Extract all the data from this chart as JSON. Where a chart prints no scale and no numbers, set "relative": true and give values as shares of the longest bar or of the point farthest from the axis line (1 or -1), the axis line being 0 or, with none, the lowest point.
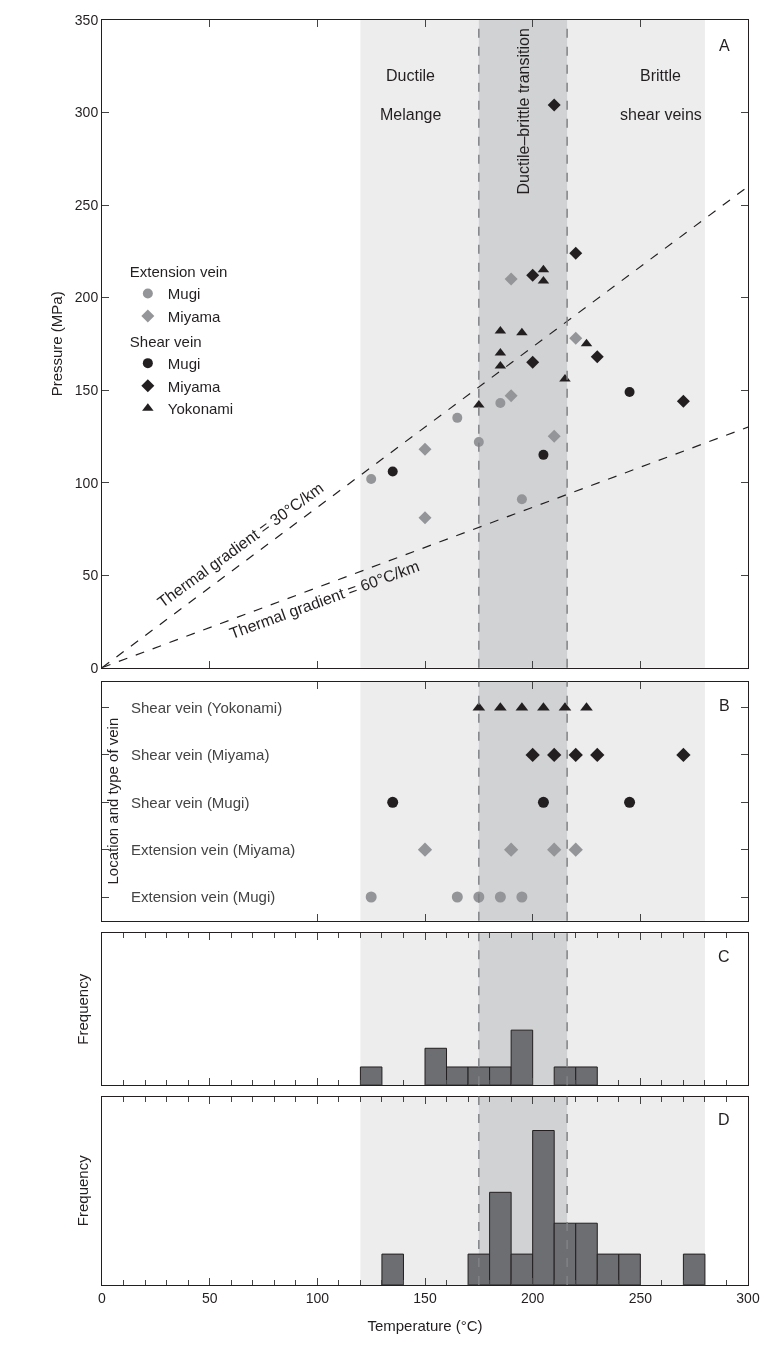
{
  "chart_data": [
    {
      "type": "scatter",
      "ylabel": "Pressure (MPa)",
      "xlim": [
        0,
        300
      ],
      "xticks": [
        0,
        50,
        100,
        150,
        200,
        250,
        300
      ],
      "ylim": [
        0,
        350
      ],
      "yticks": [
        0,
        50,
        100,
        150,
        200,
        250,
        300,
        350
      ],
      "tick_labels": "y",
      "grid": false,
      "legend": "left",
      "series": [
        {
          "name": "Mugi",
          "color": "#939598",
          "marker": "circle",
          "x": [
            125,
            165,
            175,
            185,
            195
          ],
          "values": [
            102,
            135,
            122,
            143,
            91
          ]
        },
        {
          "name": "Miyama",
          "color": "#939598",
          "marker": "diamond",
          "x": [
            150,
            150,
            190,
            190,
            210,
            220
          ],
          "values": [
            118,
            81,
            210,
            147,
            125,
            178
          ]
        },
        {
          "name": "Mugi",
          "color": "#231f20",
          "marker": "circle",
          "x": [
            135,
            205,
            245
          ],
          "values": [
            106,
            115,
            149
          ]
        },
        {
          "name": "Miyama",
          "color": "#231f20",
          "marker": "diamond",
          "x": [
            200,
            200,
            210,
            220,
            230,
            270
          ],
          "values": [
            212,
            165,
            304,
            224,
            168,
            144
          ]
        },
        {
          "name": "Yokonami",
          "color": "#231f20",
          "marker": "triangle",
          "x": [
            175,
            185,
            185,
            185,
            195,
            205,
            205,
            215,
            225
          ],
          "values": [
            142,
            182,
            170,
            163,
            181,
            215,
            209,
            156,
            175
          ]
        },
        {
          "type": "line",
          "color": "#231f20",
          "line_style": "dashed",
          "marker": "none",
          "x": [
            0,
            300
          ],
          "values": [
            0,
            260
          ]
        },
        {
          "type": "line",
          "color": "#231f20",
          "line_style": "dashed",
          "marker": "none",
          "x": [
            0,
            300
          ],
          "values": [
            0,
            130
          ]
        }
      ],
      "bands": [
        {
          "axis": "x",
          "from": 120,
          "to": 280,
          "color": "#ededee"
        },
        {
          "axis": "x",
          "from": 175,
          "to": 216,
          "color": "#d1d2d4",
          "label": "Ductile–brittle transition"
        }
      ],
      "ref_lines": [
        {
          "axis": "x",
          "value": 175,
          "color": "#808285",
          "line_style": "dashed"
        },
        {
          "axis": "x",
          "value": 216,
          "color": "#808285",
          "line_style": "dashed"
        }
      ],
      "annotations": [
        "Ductile",
        "Melange",
        "Brittle",
        "shear veins",
        "A",
        "Thermal gradient = 30°C/km",
        "Thermal gradient = 60°C/km",
        "Extension vein",
        "Shear vein"
      ]
    },
    {
      "type": "scatter",
      "orientation": "horizontal",
      "ylabel": "Location and type of vein",
      "xlim": [
        0,
        300
      ],
      "xticks": [
        0,
        50,
        100,
        150,
        200,
        250,
        300
      ],
      "categories": [
        "Shear vein (Yokonami)",
        "Shear vein (Miyama)",
        "Shear vein (Mugi)",
        "Extension vein (Miyama)",
        "Extension vein (Mugi)"
      ],
      "tick_labels": "y",
      "grid": false,
      "series": [
        {
          "color": "#231f20",
          "marker": "triangle",
          "x": [
            "Shear vein (Yokonami)",
            "Shear vein (Yokonami)",
            "Shear vein (Yokonami)",
            "Shear vein (Yokonami)",
            "Shear vein (Yokonami)",
            "Shear vein (Yokonami)"
          ],
          "values": [
            175,
            185,
            195,
            205,
            215,
            225
          ]
        },
        {
          "color": "#231f20",
          "marker": "diamond",
          "x": [
            "Shear vein (Miyama)",
            "Shear vein (Miyama)",
            "Shear vein (Miyama)",
            "Shear vein (Miyama)",
            "Shear vein (Miyama)"
          ],
          "values": [
            200,
            210,
            220,
            230,
            270
          ]
        },
        {
          "color": "#231f20",
          "marker": "circle",
          "x": [
            "Shear vein (Mugi)",
            "Shear vein (Mugi)",
            "Shear vein (Mugi)"
          ],
          "values": [
            135,
            205,
            245
          ]
        },
        {
          "color": "#939598",
          "marker": "diamond",
          "x": [
            "Extension vein (Miyama)",
            "Extension vein (Miyama)",
            "Extension vein (Miyama)",
            "Extension vein (Miyama)"
          ],
          "values": [
            150,
            190,
            210,
            220
          ]
        },
        {
          "color": "#939598",
          "marker": "circle",
          "x": [
            "Extension vein (Mugi)",
            "Extension vein (Mugi)",
            "Extension vein (Mugi)",
            "Extension vein (Mugi)",
            "Extension vein (Mugi)"
          ],
          "values": [
            125,
            165,
            175,
            185,
            195
          ]
        }
      ],
      "bands": [
        {
          "axis": "x",
          "from": 120,
          "to": 280,
          "color": "#ededee"
        },
        {
          "axis": "x",
          "from": 175,
          "to": 216,
          "color": "#d1d2d4"
        }
      ],
      "ref_lines": [
        {
          "axis": "x",
          "value": 175,
          "color": "#808285",
          "line_style": "dashed"
        },
        {
          "axis": "x",
          "value": 216,
          "color": "#808285",
          "line_style": "dashed"
        }
      ],
      "annotations": [
        "B"
      ]
    },
    {
      "type": "bar",
      "ylabel": "Frequency",
      "relative": true,
      "xlim": [
        0,
        300
      ],
      "xticks": [
        0,
        50,
        100,
        150,
        200,
        250,
        300
      ],
      "tick_labels": false,
      "grid": false,
      "color": "#6d6e71",
      "x": [
        125,
        155,
        165,
        175,
        185,
        195,
        215,
        225
      ],
      "values": [
        0.33,
        0.67,
        0.33,
        0.33,
        0.33,
        1,
        0.33,
        0.33
      ],
      "bands": [
        {
          "axis": "x",
          "from": 120,
          "to": 280,
          "color": "#ededee"
        },
        {
          "axis": "x",
          "from": 175,
          "to": 216,
          "color": "#d1d2d4"
        }
      ],
      "ref_lines": [
        {
          "axis": "x",
          "value": 175,
          "color": "#808285",
          "line_style": "dashed"
        },
        {
          "axis": "x",
          "value": 216,
          "color": "#808285",
          "line_style": "dashed"
        }
      ],
      "annotations": [
        "C"
      ]
    },
    {
      "type": "bar",
      "ylabel": "Frequency",
      "xlabel": "Temperature (°C)",
      "relative": true,
      "xlim": [
        0,
        300
      ],
      "xticks": [
        0,
        50,
        100,
        150,
        200,
        250,
        300
      ],
      "tick_labels": "x",
      "grid": false,
      "color": "#6d6e71",
      "x": [
        135,
        175,
        185,
        195,
        205,
        215,
        225,
        235,
        245,
        275
      ],
      "values": [
        0.2,
        0.2,
        0.6,
        0.2,
        1,
        0.4,
        0.4,
        0.2,
        0.2,
        0.2
      ],
      "bands": [
        {
          "axis": "x",
          "from": 120,
          "to": 280,
          "color": "#ededee"
        },
        {
          "axis": "x",
          "from": 175,
          "to": 216,
          "color": "#d1d2d4"
        }
      ],
      "ref_lines": [
        {
          "axis": "x",
          "value": 175,
          "color": "#808285",
          "line_style": "dashed"
        },
        {
          "axis": "x",
          "value": 216,
          "color": "#808285",
          "line_style": "dashed"
        }
      ],
      "annotations": [
        "D"
      ]
    }
  ]
}
